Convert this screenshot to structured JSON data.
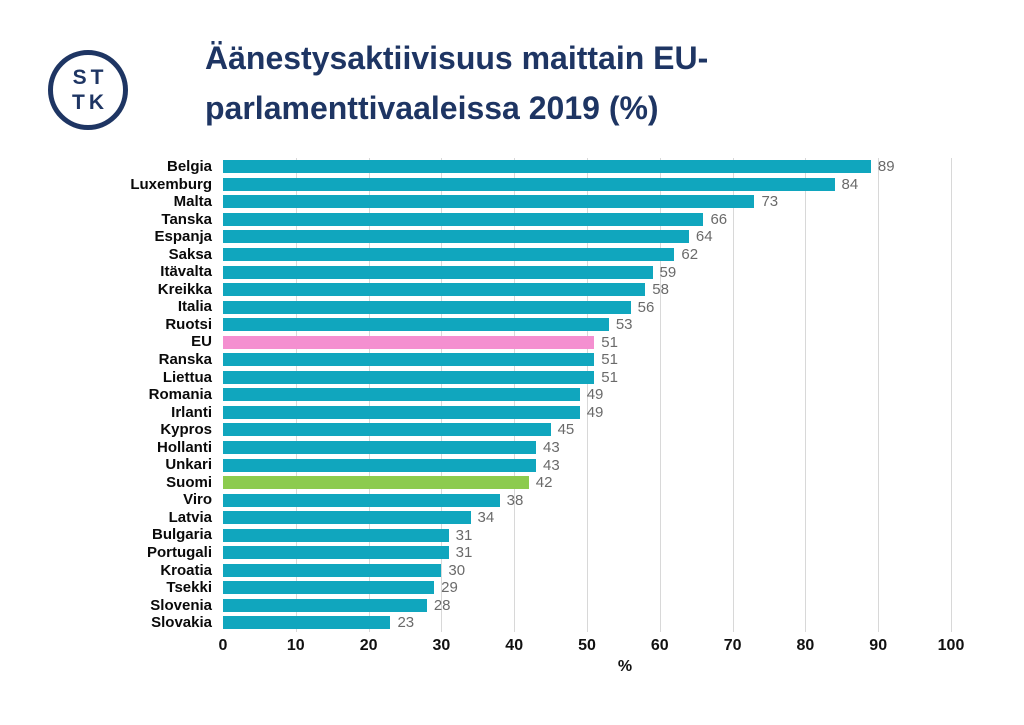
{
  "logo": {
    "line1": "ST",
    "line2": "TK",
    "color": "#1E3563"
  },
  "header": {
    "title_line1": "Äänestysaktiivisuus maittain EU-",
    "title_line2": "parlamenttivaaleissa 2019 (%)",
    "color": "#1E3563"
  },
  "chart_data": {
    "type": "bar",
    "orientation": "horizontal",
    "title": "Äänestysaktiivisuus maittain EU-parlamenttivaaleissa 2019 (%)",
    "xlabel": "%",
    "ylabel": "",
    "xlim": [
      0,
      100
    ],
    "xticks": [
      0,
      10,
      20,
      30,
      40,
      50,
      60,
      70,
      80,
      90,
      100
    ],
    "grid": true,
    "legend": false,
    "categories": [
      "Belgia",
      "Luxemburg",
      "Malta",
      "Tanska",
      "Espanja",
      "Saksa",
      "Itävalta",
      "Kreikka",
      "Italia",
      "Ruotsi",
      "EU",
      "Ranska",
      "Liettua",
      "Romania",
      "Irlanti",
      "Kypros",
      "Hollanti",
      "Unkari",
      "Suomi",
      "Viro",
      "Latvia",
      "Bulgaria",
      "Portugali",
      "Kroatia",
      "Tsekki",
      "Slovenia",
      "Slovakia"
    ],
    "values": [
      89,
      84,
      73,
      66,
      64,
      62,
      59,
      58,
      56,
      53,
      51,
      51,
      51,
      49,
      49,
      45,
      43,
      43,
      42,
      38,
      34,
      31,
      31,
      30,
      29,
      28,
      23
    ],
    "default_bar_color": "#10A6BE",
    "highlight_colors": {
      "EU": "#F48FD0",
      "Suomi": "#8CCB4E"
    },
    "grid_color": "#D8D8D8",
    "value_label_color": "#6A6A6A",
    "category_label_color": "#0A0A0A",
    "tick_label_color": "#111111"
  }
}
